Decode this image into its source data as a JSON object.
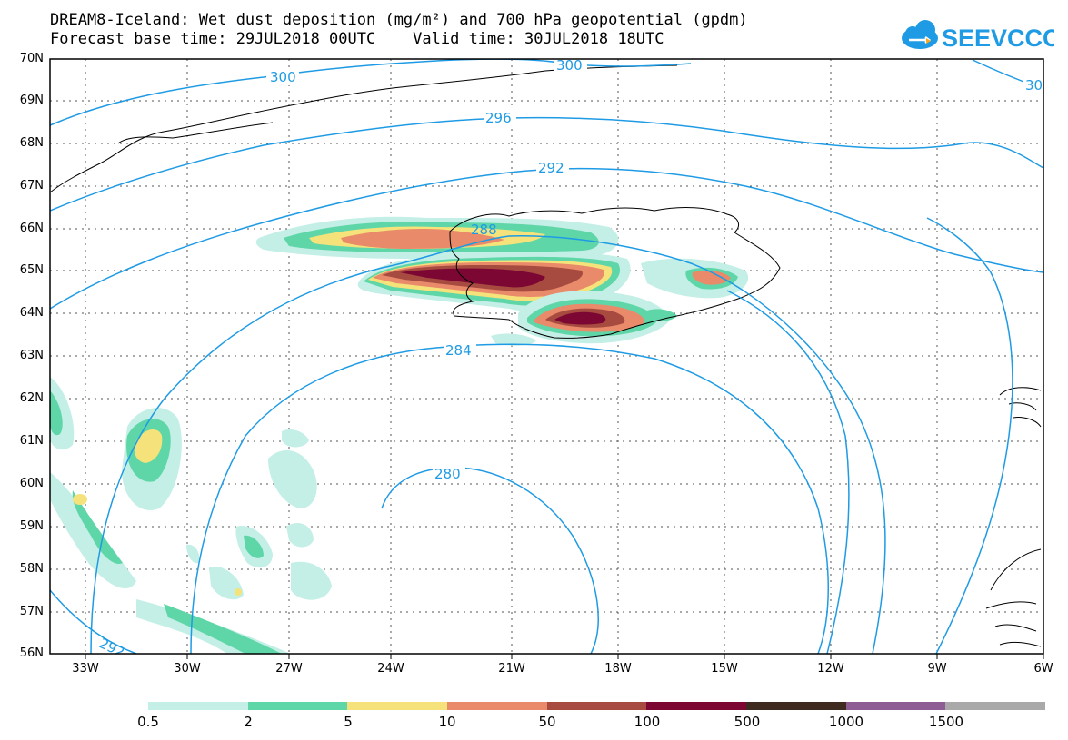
{
  "title": {
    "line1": "DREAM8-Iceland: Wet dust deposition (mg/m²) and 700 hPa geopotential (gpdm)",
    "line2": "Forecast base time: 29JUL2018 00UTC    Valid time: 30JUL2018 18UTC"
  },
  "logo": {
    "text": "SEEVCCC",
    "icon": "cloud-icon",
    "color": "#1e9be4"
  },
  "map": {
    "lat_labels": [
      "70N",
      "69N",
      "68N",
      "67N",
      "66N",
      "65N",
      "64N",
      "63N",
      "62N",
      "61N",
      "60N",
      "59N",
      "58N",
      "57N",
      "56N"
    ],
    "lon_labels": [
      "33W",
      "30W",
      "27W",
      "24W",
      "21W",
      "18W",
      "15W",
      "12W",
      "9W",
      "6W"
    ],
    "contour_labels": [
      "300",
      "300",
      "30",
      "296",
      "292",
      "288",
      "284",
      "280",
      "292"
    ],
    "contour_color": "#1e9be4"
  },
  "legend": {
    "labels": [
      "0.5",
      "2",
      "5",
      "10",
      "50",
      "100",
      "500",
      "1000",
      "1500"
    ],
    "colors": [
      "#c3efe6",
      "#5fd6a8",
      "#f5e27a",
      "#e98a6a",
      "#a74b40",
      "#7c0732",
      "#3e2a1e",
      "#8d5c92",
      "#a9a9a9"
    ]
  }
}
